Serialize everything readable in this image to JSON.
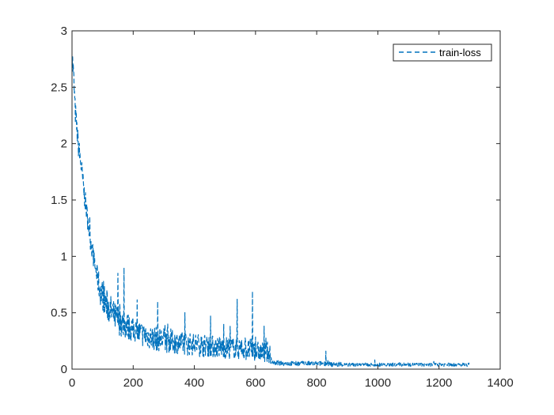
{
  "chart_data": {
    "type": "line",
    "title": "",
    "xlabel": "",
    "ylabel": "",
    "xlim": [
      0,
      1400
    ],
    "ylim": [
      0,
      3
    ],
    "xticks": [
      0,
      200,
      400,
      600,
      800,
      1000,
      1200,
      1400
    ],
    "yticks": [
      0,
      0.5,
      1,
      1.5,
      2,
      2.5,
      3
    ],
    "xtick_labels": [
      "0",
      "200",
      "400",
      "600",
      "800",
      "1000",
      "1200",
      "1400"
    ],
    "ytick_labels": [
      "0",
      "0.5",
      "1",
      "1.5",
      "2",
      "2.5",
      "3"
    ],
    "grid": false,
    "legend_position": "top-right",
    "line_style": "dashed",
    "series": [
      {
        "name": "train-loss",
        "color": "#0072BD",
        "x": [
          0,
          5,
          10,
          15,
          20,
          30,
          40,
          50,
          60,
          70,
          80,
          90,
          100,
          110,
          120,
          130,
          140,
          150,
          160,
          170,
          180,
          200,
          220,
          240,
          260,
          280,
          300,
          320,
          340,
          360,
          380,
          400,
          420,
          440,
          460,
          480,
          500,
          520,
          540,
          560,
          580,
          590,
          600,
          620,
          640,
          650,
          660,
          680,
          700,
          750,
          800,
          830,
          850,
          900,
          950,
          1000,
          1050,
          1100,
          1150,
          1200,
          1250,
          1300
        ],
        "y": [
          2.8,
          2.6,
          2.3,
          2.15,
          2.0,
          1.8,
          1.55,
          1.35,
          1.15,
          1.0,
          0.85,
          0.72,
          0.65,
          0.58,
          0.55,
          0.5,
          0.46,
          0.44,
          0.42,
          0.4,
          0.38,
          0.35,
          0.32,
          0.3,
          0.28,
          0.27,
          0.26,
          0.25,
          0.24,
          0.23,
          0.22,
          0.22,
          0.21,
          0.21,
          0.2,
          0.2,
          0.19,
          0.19,
          0.18,
          0.18,
          0.17,
          0.17,
          0.16,
          0.15,
          0.15,
          0.08,
          0.06,
          0.05,
          0.05,
          0.05,
          0.05,
          0.05,
          0.04,
          0.04,
          0.04,
          0.04,
          0.04,
          0.04,
          0.04,
          0.04,
          0.04,
          0.04
        ],
        "noise": [
          0.1,
          0.12,
          0.12,
          0.1,
          0.1,
          0.1,
          0.1,
          0.09,
          0.09,
          0.09,
          0.1,
          0.13,
          0.14,
          0.14,
          0.14,
          0.14,
          0.13,
          0.13,
          0.13,
          0.12,
          0.12,
          0.11,
          0.11,
          0.11,
          0.11,
          0.11,
          0.11,
          0.11,
          0.1,
          0.1,
          0.1,
          0.1,
          0.1,
          0.1,
          0.1,
          0.1,
          0.1,
          0.1,
          0.1,
          0.1,
          0.1,
          0.1,
          0.09,
          0.09,
          0.09,
          0.03,
          0.02,
          0.02,
          0.02,
          0.02,
          0.02,
          0.02,
          0.02,
          0.015,
          0.015,
          0.015,
          0.015,
          0.015,
          0.015,
          0.015,
          0.015,
          0.015
        ],
        "spikes": [
          {
            "x": 150,
            "y": 0.85
          },
          {
            "x": 170,
            "y": 0.9
          },
          {
            "x": 280,
            "y": 0.6
          },
          {
            "x": 540,
            "y": 0.62
          },
          {
            "x": 590,
            "y": 0.69
          },
          {
            "x": 830,
            "y": 0.16
          }
        ]
      }
    ]
  }
}
